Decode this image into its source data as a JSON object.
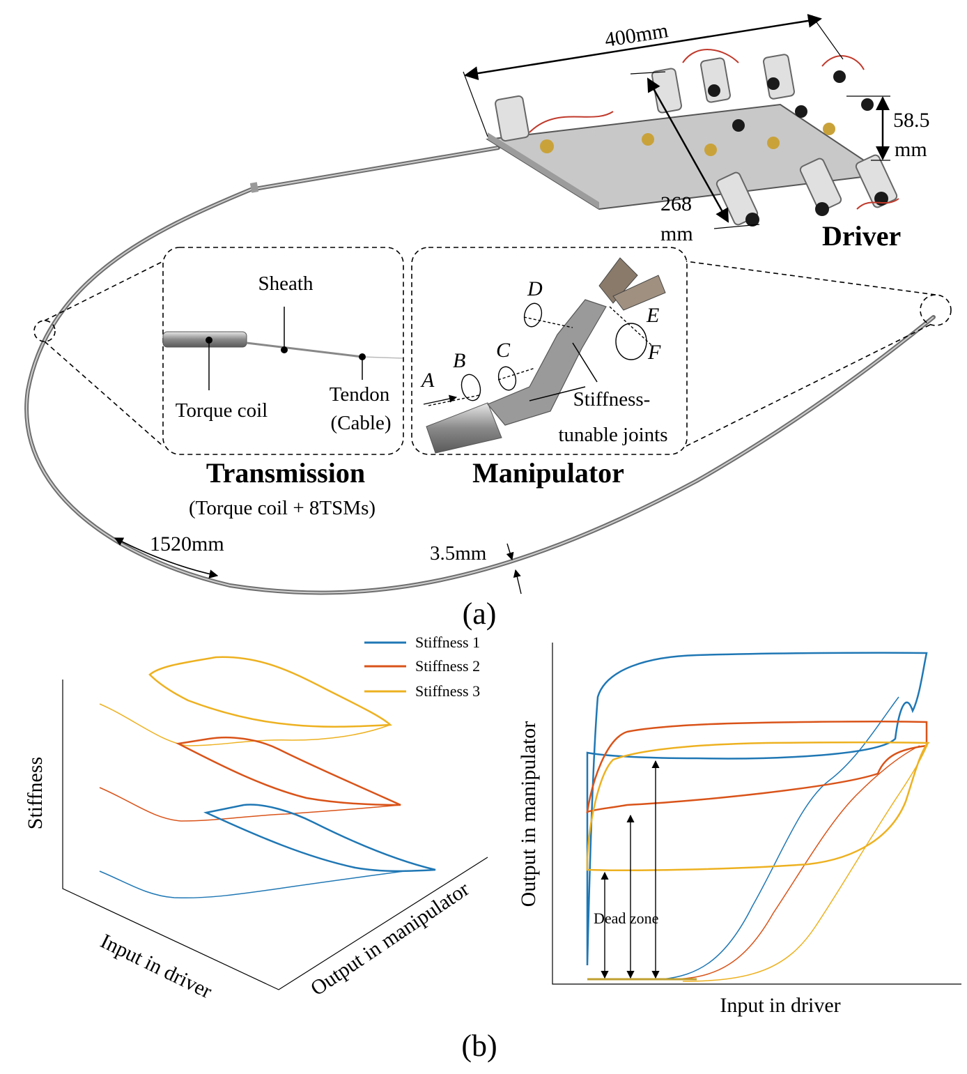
{
  "panel_a": {
    "caption": "(a)",
    "driver": {
      "title": "Driver",
      "length": "400mm",
      "height_line1": "58.5",
      "height_line2": "mm",
      "width_line1": "268",
      "width_line2": "mm"
    },
    "transmission": {
      "title": "Transmission",
      "subtitle": "(Torque coil + 8TSMs)",
      "sheath": "Sheath",
      "torque_coil": "Torque coil",
      "tendon_line1": "Tendon",
      "tendon_line2": "(Cable)"
    },
    "manipulator": {
      "title": "Manipulator",
      "joints_line1": "Stiffness-",
      "joints_line2": "tunable joints",
      "dof": [
        "A",
        "B",
        "C",
        "D",
        "E",
        "F"
      ]
    },
    "tube_length": "1520mm",
    "tube_diameter": "3.5mm"
  },
  "panel_b": {
    "caption": "(b)",
    "legend": [
      "Stiffness 1",
      "Stiffness 2",
      "Stiffness 3"
    ],
    "colors": [
      "#1f77b4",
      "#d95319",
      "#edb120"
    ],
    "dead_zone": "Dead zone"
  },
  "chart_data": [
    {
      "type": "line",
      "projection": "3d",
      "zlabel": "Stiffness",
      "xlabel": "Input in driver",
      "ylabel": "Output in manipulator",
      "series": [
        {
          "name": "Stiffness 1"
        },
        {
          "name": "Stiffness 2"
        },
        {
          "name": "Stiffness 3"
        }
      ]
    },
    {
      "type": "line",
      "xlabel": "Input in driver",
      "ylabel": "Output in manipulator",
      "series": [
        {
          "name": "Stiffness 1"
        },
        {
          "name": "Stiffness 2"
        },
        {
          "name": "Stiffness 3"
        }
      ],
      "annotation": "Dead zone"
    }
  ]
}
